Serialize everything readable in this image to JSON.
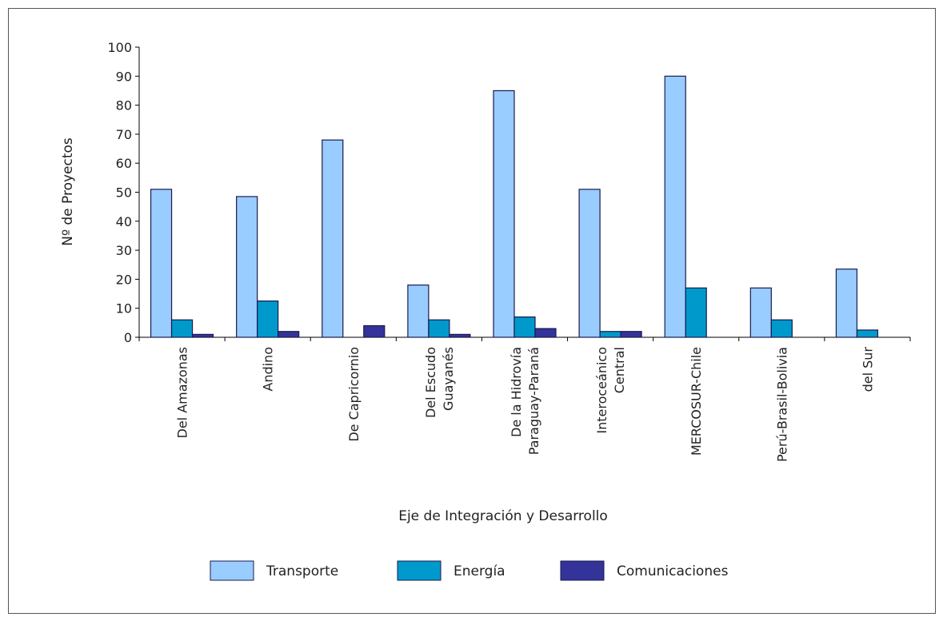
{
  "chart_data": {
    "type": "bar",
    "xlabel": "Eje de Integración y Desarrollo",
    "ylabel": "Nº de Proyectos",
    "ylim": [
      0,
      100
    ],
    "yticks": [
      0,
      10,
      20,
      30,
      40,
      50,
      60,
      70,
      80,
      90,
      100
    ],
    "grid": false,
    "legend_position": "bottom",
    "categories": [
      [
        "Del Amazonas"
      ],
      [
        "Andino"
      ],
      [
        "De Capricornio"
      ],
      [
        "Del Escudo",
        "Guayanés"
      ],
      [
        "De la Hidrovía",
        "Paraguay-Paraná"
      ],
      [
        "Interoceánico",
        "Central"
      ],
      [
        "MERCOSUR-Chile"
      ],
      [
        "Perú-Brasil-Bolivia"
      ],
      [
        "del Sur"
      ]
    ],
    "series": [
      {
        "name": "Transporte",
        "color": "#99ccff",
        "values": [
          51,
          48.5,
          68,
          18,
          85,
          51,
          90,
          17,
          23.5
        ]
      },
      {
        "name": "Energía",
        "color": "#0099cc",
        "values": [
          6,
          12.5,
          0,
          6,
          7,
          2,
          17,
          6,
          2.5
        ]
      },
      {
        "name": "Comunicaciones",
        "color": "#333399",
        "values": [
          1,
          2,
          4,
          1,
          3,
          2,
          0,
          0,
          0
        ]
      }
    ]
  }
}
